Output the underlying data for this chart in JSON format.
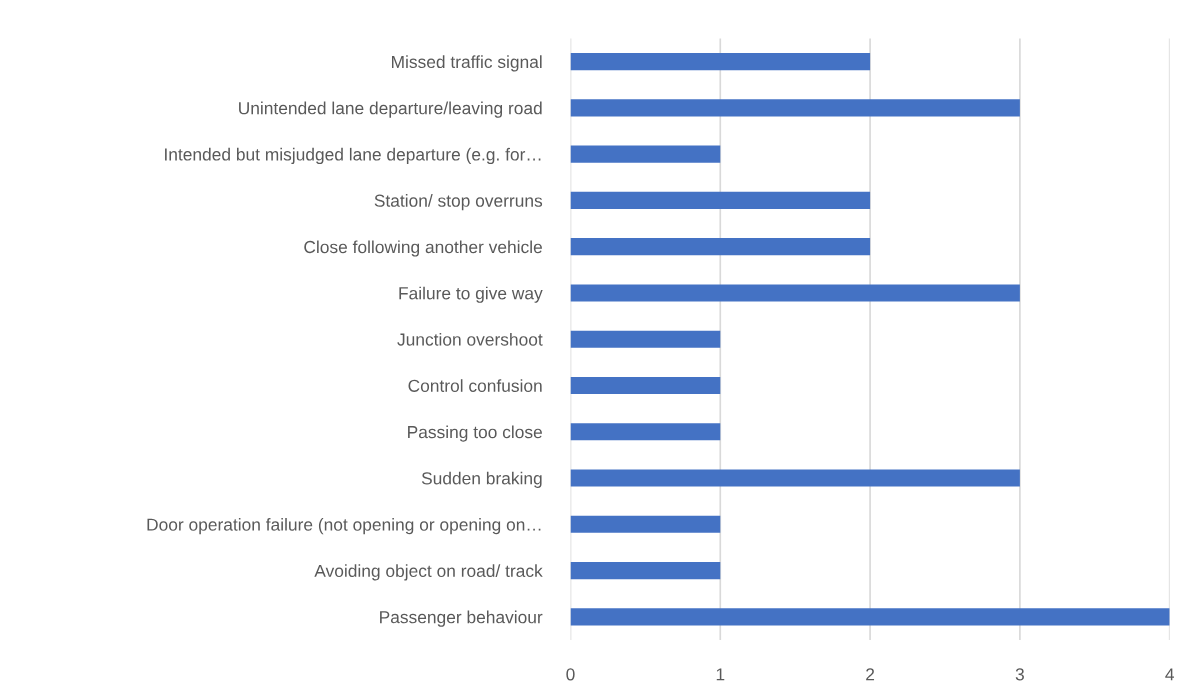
{
  "chart_data": {
    "type": "bar",
    "orientation": "horizontal",
    "categories": [
      "Missed traffic signal",
      "Unintended lane departure/leaving road",
      "Intended but misjudged lane departure (e.g. for…",
      "Station/ stop overruns",
      "Close following another vehicle",
      "Failure to give way",
      "Junction overshoot",
      "Control confusion",
      "Passing too close",
      "Sudden braking",
      "Door operation failure (not opening or opening on…",
      "Avoiding object on road/ track",
      "Passenger behaviour"
    ],
    "values": [
      2,
      3,
      1,
      2,
      2,
      3,
      1,
      1,
      1,
      3,
      1,
      1,
      4
    ],
    "color": "#4472c4",
    "xlim": [
      0,
      4
    ],
    "xticks": [
      0,
      1,
      2,
      3,
      4
    ],
    "grid": "x"
  }
}
